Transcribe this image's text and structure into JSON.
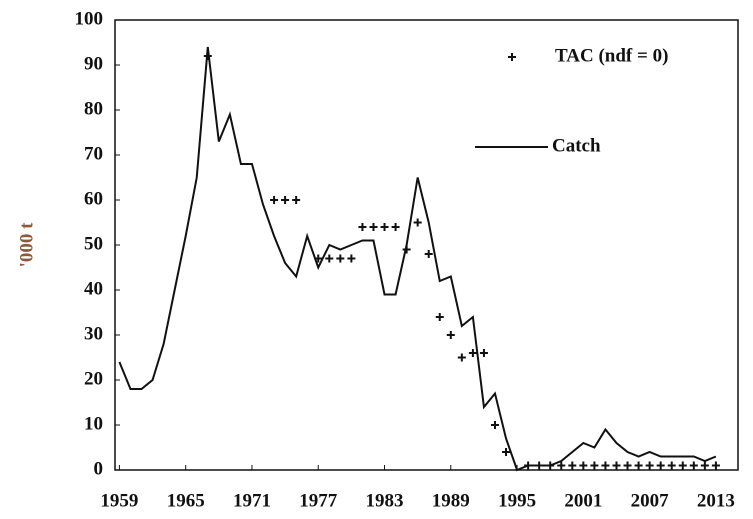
{
  "chart_data": {
    "type": "line",
    "y_label": "'000 t",
    "x": [
      1959,
      1960,
      1961,
      1962,
      1963,
      1964,
      1965,
      1966,
      1967,
      1968,
      1969,
      1970,
      1971,
      1972,
      1973,
      1974,
      1975,
      1976,
      1977,
      1978,
      1979,
      1980,
      1981,
      1982,
      1983,
      1984,
      1985,
      1986,
      1987,
      1988,
      1989,
      1990,
      1991,
      1992,
      1993,
      1994,
      1995,
      1996,
      1997,
      1998,
      1999,
      2000,
      2001,
      2002,
      2003,
      2004,
      2005,
      2006,
      2007,
      2008,
      2009,
      2010,
      2011,
      2012,
      2013
    ],
    "series": [
      {
        "name": "Catch",
        "mode": "line",
        "color": "#111111",
        "values": [
          24,
          18,
          18,
          20,
          28,
          40,
          52,
          65,
          94,
          73,
          79,
          68,
          68,
          59,
          52,
          46,
          43,
          52,
          45,
          50,
          49,
          50,
          51,
          51,
          39,
          39,
          50,
          65,
          55,
          42,
          43,
          32,
          34,
          14,
          17,
          7,
          0,
          1,
          1,
          1,
          2,
          4,
          6,
          5,
          9,
          6,
          4,
          3,
          4,
          3,
          3,
          3,
          3,
          2,
          3
        ]
      },
      {
        "name": "TAC (ndf = 0)",
        "mode": "markers",
        "color": "#111111",
        "x": [
          1967,
          1973,
          1974,
          1975,
          1977,
          1978,
          1979,
          1980,
          1981,
          1982,
          1983,
          1984,
          1985,
          1986,
          1987,
          1988,
          1989,
          1990,
          1991,
          1992,
          1993,
          1994,
          1996,
          1997,
          1998,
          1999,
          2000,
          2001,
          2002,
          2003,
          2004,
          2005,
          2006,
          2007,
          2008,
          2009,
          2010,
          2011,
          2012,
          2013
        ],
        "values": [
          92,
          60,
          60,
          60,
          47,
          47,
          47,
          47,
          54,
          54,
          54,
          54,
          49,
          55,
          48,
          34,
          30,
          25,
          26,
          26,
          10,
          4,
          1,
          1,
          1,
          1,
          1,
          1,
          1,
          1,
          1,
          1,
          1,
          1,
          1,
          1,
          1,
          1,
          1,
          1
        ]
      }
    ],
    "xlim": [
      1958.6,
      2015
    ],
    "xticks": [
      1959,
      1965,
      1971,
      1977,
      1983,
      1989,
      1995,
      2001,
      2007,
      2013
    ],
    "ylim": [
      0,
      100
    ],
    "yticks": [
      0,
      10,
      20,
      30,
      40,
      50,
      60,
      70,
      80,
      90,
      100
    ],
    "grid": false
  }
}
